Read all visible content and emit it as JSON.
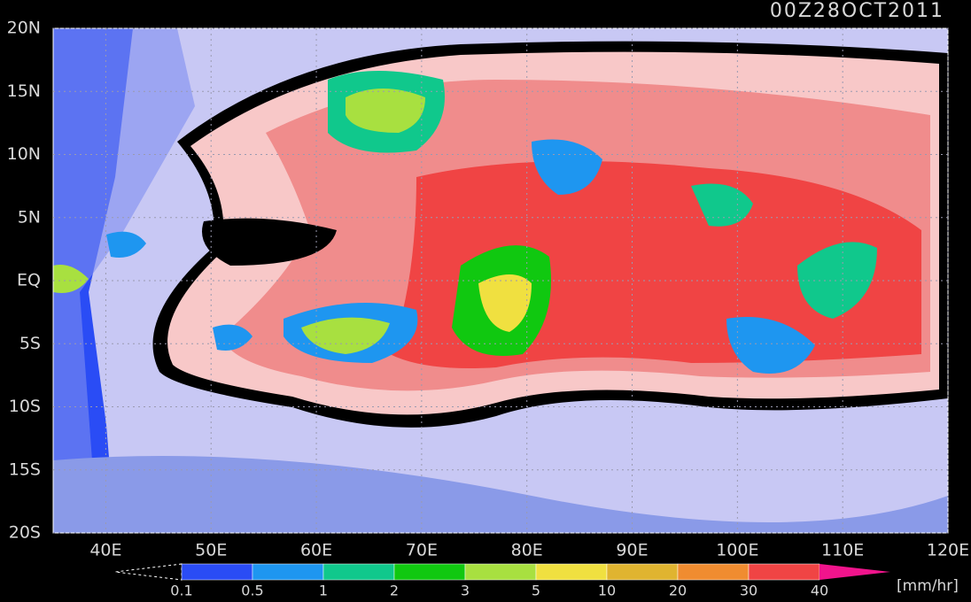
{
  "map": {
    "title": "00Z28OCT2011",
    "lonlim": [
      35,
      120
    ],
    "latlim": [
      -20,
      20
    ],
    "lonticks": [
      {
        "value": 40,
        "label": "40E"
      },
      {
        "value": 50,
        "label": "50E"
      },
      {
        "value": 60,
        "label": "60E"
      },
      {
        "value": 70,
        "label": "70E"
      },
      {
        "value": 80,
        "label": "80E"
      },
      {
        "value": 90,
        "label": "90E"
      },
      {
        "value": 100,
        "label": "100E"
      },
      {
        "value": 110,
        "label": "110E"
      },
      {
        "value": 120,
        "label": "120E"
      }
    ],
    "latticks": [
      {
        "value": 20,
        "label": "20N"
      },
      {
        "value": 15,
        "label": "15N"
      },
      {
        "value": 10,
        "label": "10N"
      },
      {
        "value": 5,
        "label": "5N"
      },
      {
        "value": 0,
        "label": "EQ"
      },
      {
        "value": -5,
        "label": "5S"
      },
      {
        "value": -10,
        "label": "10S"
      },
      {
        "value": -15,
        "label": "15S"
      },
      {
        "value": -20,
        "label": "20S"
      }
    ],
    "grid": true,
    "colorbar": {
      "levels": [
        0.1,
        0.5,
        1,
        2,
        3,
        5,
        10,
        20,
        30,
        40
      ],
      "colors": [
        "#2a4cf5",
        "#1e96f0",
        "#10c88c",
        "#10c810",
        "#a8e040",
        "#f0e040",
        "#e0b430",
        "#f08c30",
        "#f04444"
      ],
      "over_color": "#f0148c",
      "unit": "[mm/hr]"
    }
  }
}
